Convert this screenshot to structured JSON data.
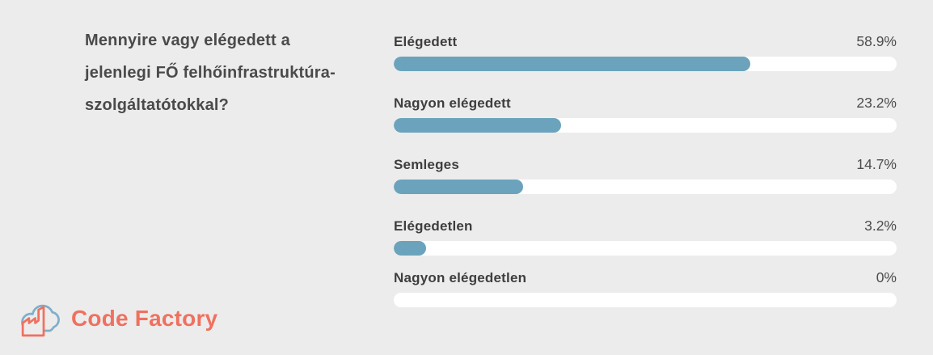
{
  "page": {
    "background_color": "#ececec",
    "question": "Mennyire vagy elégedett a jelenlegi FŐ felhőinfrastruktúra-szolgáltatótokkal?"
  },
  "logo": {
    "text": "Code Factory",
    "text_color": "#f0705f",
    "cloud_color": "#7fafcb",
    "factory_color": "#f0705f"
  },
  "chart_data": {
    "type": "bar",
    "orientation": "horizontal",
    "title": "Mennyire vagy elégedett a jelenlegi FŐ felhőinfrastruktúra-szolgáltatótokkal?",
    "categories": [
      "Elégedett",
      "Nagyon elégedett",
      "Semleges",
      "Elégedetlen",
      "Nagyon elégedetlen"
    ],
    "values": [
      58.9,
      23.2,
      14.7,
      3.2,
      0
    ],
    "value_labels": [
      "58.9%",
      "23.2%",
      "14.7%",
      "3.2%",
      "0%"
    ],
    "xlim": [
      0,
      100
    ],
    "grid": false,
    "legend": false,
    "bar_color": "#6ba3bc",
    "track_color": "#ffffff",
    "fill_fractions": [
      0.709,
      0.333,
      0.257,
      0.064,
      0
    ]
  }
}
